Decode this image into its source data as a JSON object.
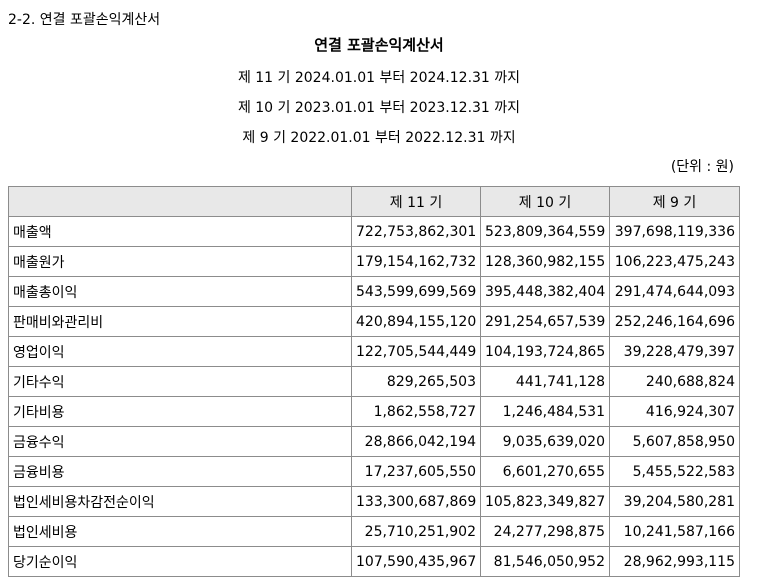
{
  "section_title": "2-2. 연결 포괄손익계산서",
  "doc_title": "연결 포괄손익계산서",
  "periods": [
    "제 11 기 2024.01.01 부터 2024.12.31 까지",
    "제 10 기 2023.01.01 부터 2023.12.31 까지",
    "제 9 기 2022.01.01 부터 2022.12.31 까지"
  ],
  "unit": "(단위 : 원)",
  "table": {
    "headers": [
      "",
      "제 11 기",
      "제 10 기",
      "제 9 기"
    ],
    "rows": [
      {
        "label": "매출액",
        "values": [
          "722,753,862,301",
          "523,809,364,559",
          "397,698,119,336"
        ]
      },
      {
        "label": "매출원가",
        "values": [
          "179,154,162,732",
          "128,360,982,155",
          "106,223,475,243"
        ]
      },
      {
        "label": "매출총이익",
        "values": [
          "543,599,699,569",
          "395,448,382,404",
          "291,474,644,093"
        ]
      },
      {
        "label": "판매비와관리비",
        "values": [
          "420,894,155,120",
          "291,254,657,539",
          "252,246,164,696"
        ]
      },
      {
        "label": "영업이익",
        "values": [
          "122,705,544,449",
          "104,193,724,865",
          "39,228,479,397"
        ]
      },
      {
        "label": "기타수익",
        "values": [
          "829,265,503",
          "441,741,128",
          "240,688,824"
        ]
      },
      {
        "label": "기타비용",
        "values": [
          "1,862,558,727",
          "1,246,484,531",
          "416,924,307"
        ]
      },
      {
        "label": "금융수익",
        "values": [
          "28,866,042,194",
          "9,035,639,020",
          "5,607,858,950"
        ]
      },
      {
        "label": "금융비용",
        "values": [
          "17,237,605,550",
          "6,601,270,655",
          "5,455,522,583"
        ]
      },
      {
        "label": "법인세비용차감전순이익",
        "values": [
          "133,300,687,869",
          "105,823,349,827",
          "39,204,580,281"
        ]
      },
      {
        "label": "법인세비용",
        "values": [
          "25,710,251,902",
          "24,277,298,875",
          "10,241,587,166"
        ]
      },
      {
        "label": "당기순이익",
        "values": [
          "107,590,435,967",
          "81,546,050,952",
          "28,962,993,115"
        ]
      }
    ]
  }
}
